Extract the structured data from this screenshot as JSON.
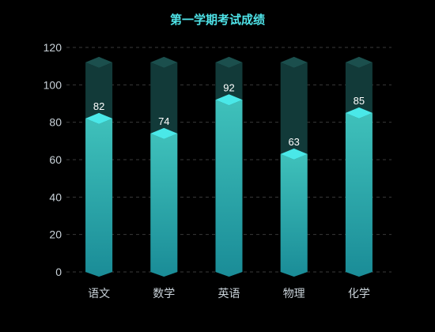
{
  "chart_data": {
    "type": "bar",
    "title": "第一学期考试成绩",
    "categories": [
      "语文",
      "数学",
      "英语",
      "物理",
      "化学"
    ],
    "values": [
      82,
      74,
      92,
      63,
      85
    ],
    "ylim": [
      0,
      120
    ],
    "yticks": [
      0,
      20,
      40,
      60,
      80,
      100,
      120
    ],
    "background_max": 112,
    "grid": true,
    "colors": {
      "title": "#4fe3e8",
      "tick": "#c9d2d9",
      "category": "#c9d2d9",
      "value_label": "#ffffff",
      "grid": "#3a3a3a",
      "bar_top": "#3fc1bb",
      "bar_bottom": "#1a8c97",
      "bar_cap": "#4ae8e8",
      "track": "#123a39",
      "track_cap": "#1b4f4d"
    }
  }
}
